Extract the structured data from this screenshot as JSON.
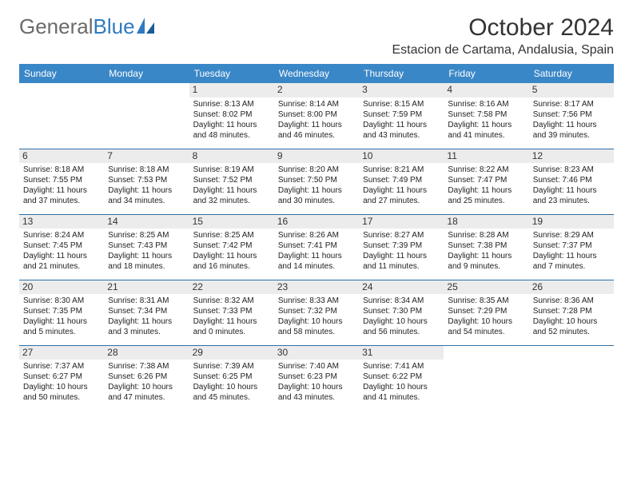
{
  "logo": {
    "textGray": "General",
    "textBlue": "Blue"
  },
  "header": {
    "title": "October 2024",
    "location": "Estacion de Cartama, Andalusia, Spain"
  },
  "colors": {
    "headerBlue": "#3a87c7",
    "rowDivider": "#2f6fa5",
    "dayNumBg": "#ececec",
    "logoGray": "#6b6b6b",
    "logoBlue": "#2f7ac0"
  },
  "dayHeaders": [
    "Sunday",
    "Monday",
    "Tuesday",
    "Wednesday",
    "Thursday",
    "Friday",
    "Saturday"
  ],
  "weeks": [
    [
      null,
      null,
      {
        "num": "1",
        "sunrise": "Sunrise: 8:13 AM",
        "sunset": "Sunset: 8:02 PM",
        "daylight": "Daylight: 11 hours and 48 minutes."
      },
      {
        "num": "2",
        "sunrise": "Sunrise: 8:14 AM",
        "sunset": "Sunset: 8:00 PM",
        "daylight": "Daylight: 11 hours and 46 minutes."
      },
      {
        "num": "3",
        "sunrise": "Sunrise: 8:15 AM",
        "sunset": "Sunset: 7:59 PM",
        "daylight": "Daylight: 11 hours and 43 minutes."
      },
      {
        "num": "4",
        "sunrise": "Sunrise: 8:16 AM",
        "sunset": "Sunset: 7:58 PM",
        "daylight": "Daylight: 11 hours and 41 minutes."
      },
      {
        "num": "5",
        "sunrise": "Sunrise: 8:17 AM",
        "sunset": "Sunset: 7:56 PM",
        "daylight": "Daylight: 11 hours and 39 minutes."
      }
    ],
    [
      {
        "num": "6",
        "sunrise": "Sunrise: 8:18 AM",
        "sunset": "Sunset: 7:55 PM",
        "daylight": "Daylight: 11 hours and 37 minutes."
      },
      {
        "num": "7",
        "sunrise": "Sunrise: 8:18 AM",
        "sunset": "Sunset: 7:53 PM",
        "daylight": "Daylight: 11 hours and 34 minutes."
      },
      {
        "num": "8",
        "sunrise": "Sunrise: 8:19 AM",
        "sunset": "Sunset: 7:52 PM",
        "daylight": "Daylight: 11 hours and 32 minutes."
      },
      {
        "num": "9",
        "sunrise": "Sunrise: 8:20 AM",
        "sunset": "Sunset: 7:50 PM",
        "daylight": "Daylight: 11 hours and 30 minutes."
      },
      {
        "num": "10",
        "sunrise": "Sunrise: 8:21 AM",
        "sunset": "Sunset: 7:49 PM",
        "daylight": "Daylight: 11 hours and 27 minutes."
      },
      {
        "num": "11",
        "sunrise": "Sunrise: 8:22 AM",
        "sunset": "Sunset: 7:47 PM",
        "daylight": "Daylight: 11 hours and 25 minutes."
      },
      {
        "num": "12",
        "sunrise": "Sunrise: 8:23 AM",
        "sunset": "Sunset: 7:46 PM",
        "daylight": "Daylight: 11 hours and 23 minutes."
      }
    ],
    [
      {
        "num": "13",
        "sunrise": "Sunrise: 8:24 AM",
        "sunset": "Sunset: 7:45 PM",
        "daylight": "Daylight: 11 hours and 21 minutes."
      },
      {
        "num": "14",
        "sunrise": "Sunrise: 8:25 AM",
        "sunset": "Sunset: 7:43 PM",
        "daylight": "Daylight: 11 hours and 18 minutes."
      },
      {
        "num": "15",
        "sunrise": "Sunrise: 8:25 AM",
        "sunset": "Sunset: 7:42 PM",
        "daylight": "Daylight: 11 hours and 16 minutes."
      },
      {
        "num": "16",
        "sunrise": "Sunrise: 8:26 AM",
        "sunset": "Sunset: 7:41 PM",
        "daylight": "Daylight: 11 hours and 14 minutes."
      },
      {
        "num": "17",
        "sunrise": "Sunrise: 8:27 AM",
        "sunset": "Sunset: 7:39 PM",
        "daylight": "Daylight: 11 hours and 11 minutes."
      },
      {
        "num": "18",
        "sunrise": "Sunrise: 8:28 AM",
        "sunset": "Sunset: 7:38 PM",
        "daylight": "Daylight: 11 hours and 9 minutes."
      },
      {
        "num": "19",
        "sunrise": "Sunrise: 8:29 AM",
        "sunset": "Sunset: 7:37 PM",
        "daylight": "Daylight: 11 hours and 7 minutes."
      }
    ],
    [
      {
        "num": "20",
        "sunrise": "Sunrise: 8:30 AM",
        "sunset": "Sunset: 7:35 PM",
        "daylight": "Daylight: 11 hours and 5 minutes."
      },
      {
        "num": "21",
        "sunrise": "Sunrise: 8:31 AM",
        "sunset": "Sunset: 7:34 PM",
        "daylight": "Daylight: 11 hours and 3 minutes."
      },
      {
        "num": "22",
        "sunrise": "Sunrise: 8:32 AM",
        "sunset": "Sunset: 7:33 PM",
        "daylight": "Daylight: 11 hours and 0 minutes."
      },
      {
        "num": "23",
        "sunrise": "Sunrise: 8:33 AM",
        "sunset": "Sunset: 7:32 PM",
        "daylight": "Daylight: 10 hours and 58 minutes."
      },
      {
        "num": "24",
        "sunrise": "Sunrise: 8:34 AM",
        "sunset": "Sunset: 7:30 PM",
        "daylight": "Daylight: 10 hours and 56 minutes."
      },
      {
        "num": "25",
        "sunrise": "Sunrise: 8:35 AM",
        "sunset": "Sunset: 7:29 PM",
        "daylight": "Daylight: 10 hours and 54 minutes."
      },
      {
        "num": "26",
        "sunrise": "Sunrise: 8:36 AM",
        "sunset": "Sunset: 7:28 PM",
        "daylight": "Daylight: 10 hours and 52 minutes."
      }
    ],
    [
      {
        "num": "27",
        "sunrise": "Sunrise: 7:37 AM",
        "sunset": "Sunset: 6:27 PM",
        "daylight": "Daylight: 10 hours and 50 minutes."
      },
      {
        "num": "28",
        "sunrise": "Sunrise: 7:38 AM",
        "sunset": "Sunset: 6:26 PM",
        "daylight": "Daylight: 10 hours and 47 minutes."
      },
      {
        "num": "29",
        "sunrise": "Sunrise: 7:39 AM",
        "sunset": "Sunset: 6:25 PM",
        "daylight": "Daylight: 10 hours and 45 minutes."
      },
      {
        "num": "30",
        "sunrise": "Sunrise: 7:40 AM",
        "sunset": "Sunset: 6:23 PM",
        "daylight": "Daylight: 10 hours and 43 minutes."
      },
      {
        "num": "31",
        "sunrise": "Sunrise: 7:41 AM",
        "sunset": "Sunset: 6:22 PM",
        "daylight": "Daylight: 10 hours and 41 minutes."
      },
      null,
      null
    ]
  ]
}
